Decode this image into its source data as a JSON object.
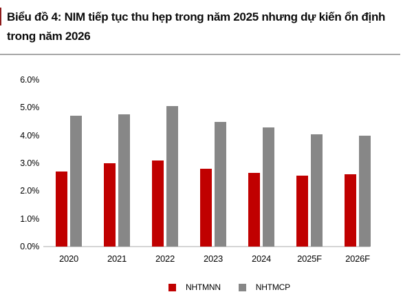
{
  "figure": {
    "title": "Biểu đồ 4: NIM tiếp tục thu hẹp trong năm 2025 nhưng dự kiến ổn định trong năm 2026"
  },
  "chart_data": {
    "type": "bar",
    "title": "Biểu đồ 4: NIM tiếp tục thu hẹp trong năm 2025 nhưng dự kiến ổn định trong năm 2026",
    "categories": [
      "2020",
      "2021",
      "2022",
      "2023",
      "2024",
      "2025F",
      "2026F"
    ],
    "series": [
      {
        "name": "NHTMNN",
        "color": "#c00000",
        "values": [
          2.7,
          3.0,
          3.1,
          2.8,
          2.65,
          2.55,
          2.6
        ]
      },
      {
        "name": "NHTMCP",
        "color": "#878787",
        "values": [
          4.7,
          4.75,
          5.05,
          4.5,
          4.3,
          4.05,
          4.0
        ]
      }
    ],
    "xlabel": "",
    "ylabel": "",
    "ylim": [
      0,
      6
    ],
    "yticks": [
      "0.0%",
      "1.0%",
      "2.0%",
      "3.0%",
      "4.0%",
      "5.0%",
      "6.0%"
    ],
    "grid": false,
    "legend_position": "bottom"
  },
  "colors": {
    "series_red": "#c00000",
    "series_gray": "#878787",
    "axis_line": "#d4d4d4",
    "title_separator": "#a6a6a6",
    "text": "#000000"
  }
}
